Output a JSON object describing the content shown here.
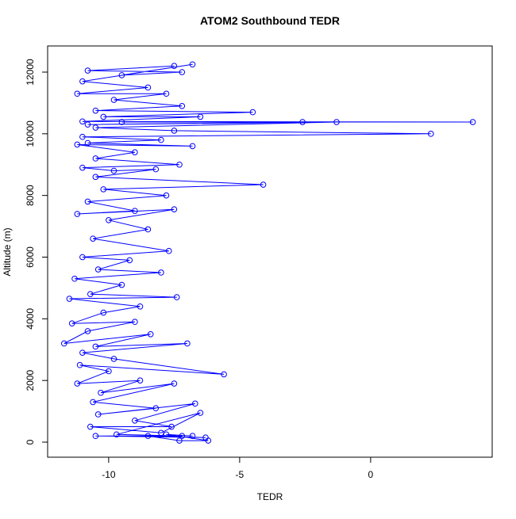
{
  "chart_data": {
    "type": "line",
    "title": "ATOM2 Southbound TEDR",
    "x_label": "TEDR",
    "y_label": "Altitude (m)",
    "color": "#0000ff",
    "markers": "open-circle",
    "xlim": [
      -12.33,
      4.64
    ],
    "xticks": [
      -10,
      -5,
      0
    ],
    "ylim": [
      -488,
      12848
    ],
    "yticks": [
      0,
      2000,
      4000,
      6000,
      8000,
      10000,
      12000
    ],
    "x": [
      -7.5,
      -10.8,
      -7.2,
      -9.5,
      -6.8,
      -11.0,
      -8.5,
      -11.2,
      -7.8,
      -9.8,
      -7.2,
      -10.5,
      -4.5,
      -10.2,
      -6.5,
      -11.0,
      3.9,
      -9.5,
      -2.6,
      -10.8,
      -1.3,
      -10.5,
      -7.5,
      2.3,
      -11.0,
      -8.0,
      -10.8,
      -6.8,
      -11.2,
      -9.0,
      -10.5,
      -7.3,
      -11.0,
      -9.8,
      -8.2,
      -10.5,
      -4.1,
      -10.2,
      -7.8,
      -10.8,
      -9.0,
      -11.2,
      -7.5,
      -10.0,
      -8.5,
      -10.6,
      -7.7,
      -11.0,
      -9.2,
      -10.4,
      -8.0,
      -11.3,
      -9.5,
      -10.7,
      -7.4,
      -11.5,
      -8.8,
      -10.2,
      -11.4,
      -9.0,
      -10.8,
      -11.7,
      -8.4,
      -10.5,
      -7.0,
      -11.0,
      -9.8,
      -5.6,
      -11.1,
      -10.0,
      -11.2,
      -8.8,
      -10.3,
      -7.5,
      -10.6,
      -8.2,
      -10.4,
      -6.7,
      -9.0,
      -7.6,
      -10.7,
      -8.0,
      -6.5,
      -9.7,
      -7.2,
      -10.5,
      -6.3,
      -8.5,
      -7.3,
      -6.2,
      -7.8,
      -6.8
    ],
    "values": [
      12200,
      12050,
      12000,
      11900,
      12250,
      11700,
      11500,
      11300,
      11300,
      11100,
      10900,
      10750,
      10700,
      10550,
      10550,
      10400,
      10380,
      10380,
      10380,
      10300,
      10380,
      10200,
      10100,
      10000,
      9900,
      9800,
      9700,
      9600,
      9650,
      9400,
      9200,
      9000,
      8900,
      8800,
      8850,
      8600,
      8350,
      8200,
      8000,
      7800,
      7500,
      7400,
      7550,
      7200,
      6900,
      6600,
      6200,
      6000,
      5900,
      5600,
      5500,
      5300,
      5100,
      4800,
      4700,
      4650,
      4400,
      4200,
      3850,
      3900,
      3600,
      3200,
      3500,
      3100,
      3200,
      2900,
      2700,
      2200,
      2500,
      2300,
      1900,
      2000,
      1600,
      1900,
      1300,
      1100,
      900,
      1250,
      700,
      500,
      500,
      300,
      950,
      250,
      200,
      200,
      150,
      200,
      50,
      50,
      250,
      200
    ]
  }
}
